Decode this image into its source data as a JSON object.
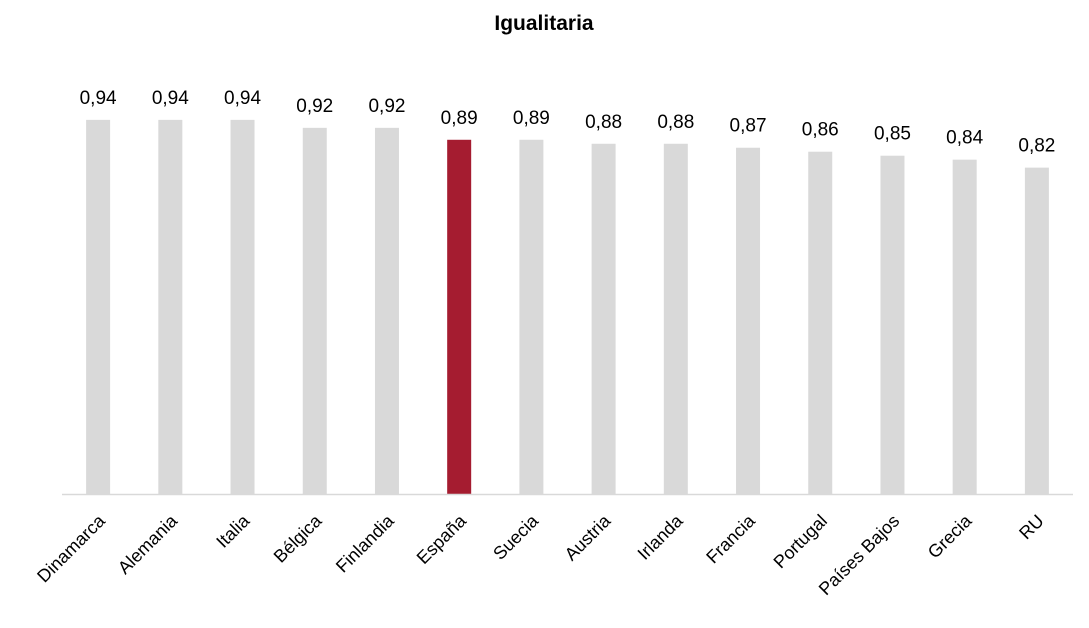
{
  "chart_data": {
    "type": "bar",
    "title": "Igualitaria",
    "categories": [
      "Dinamarca",
      "Alemania",
      "Italia",
      "Bélgica",
      "Finlandia",
      "España",
      "Suecia",
      "Austria",
      "Irlanda",
      "Francia",
      "Portugal",
      "Países Bajos",
      "Grecia",
      "RU"
    ],
    "values": [
      0.94,
      0.94,
      0.94,
      0.92,
      0.92,
      0.89,
      0.89,
      0.88,
      0.88,
      0.87,
      0.86,
      0.85,
      0.84,
      0.82
    ],
    "data_labels": [
      "0,94",
      "0,94",
      "0,94",
      "0,92",
      "0,92",
      "0,89",
      "0,89",
      "0,88",
      "0,88",
      "0,87",
      "0,86",
      "0,85",
      "0,84",
      "0,82"
    ],
    "highlight_category": "España",
    "ylim": [
      0,
      1
    ],
    "xlabel": "",
    "ylabel": "",
    "grid": false,
    "colors": {
      "bar": "#d9d9d9",
      "highlight": "#a51c30",
      "axis": "#d9d9d9"
    }
  }
}
